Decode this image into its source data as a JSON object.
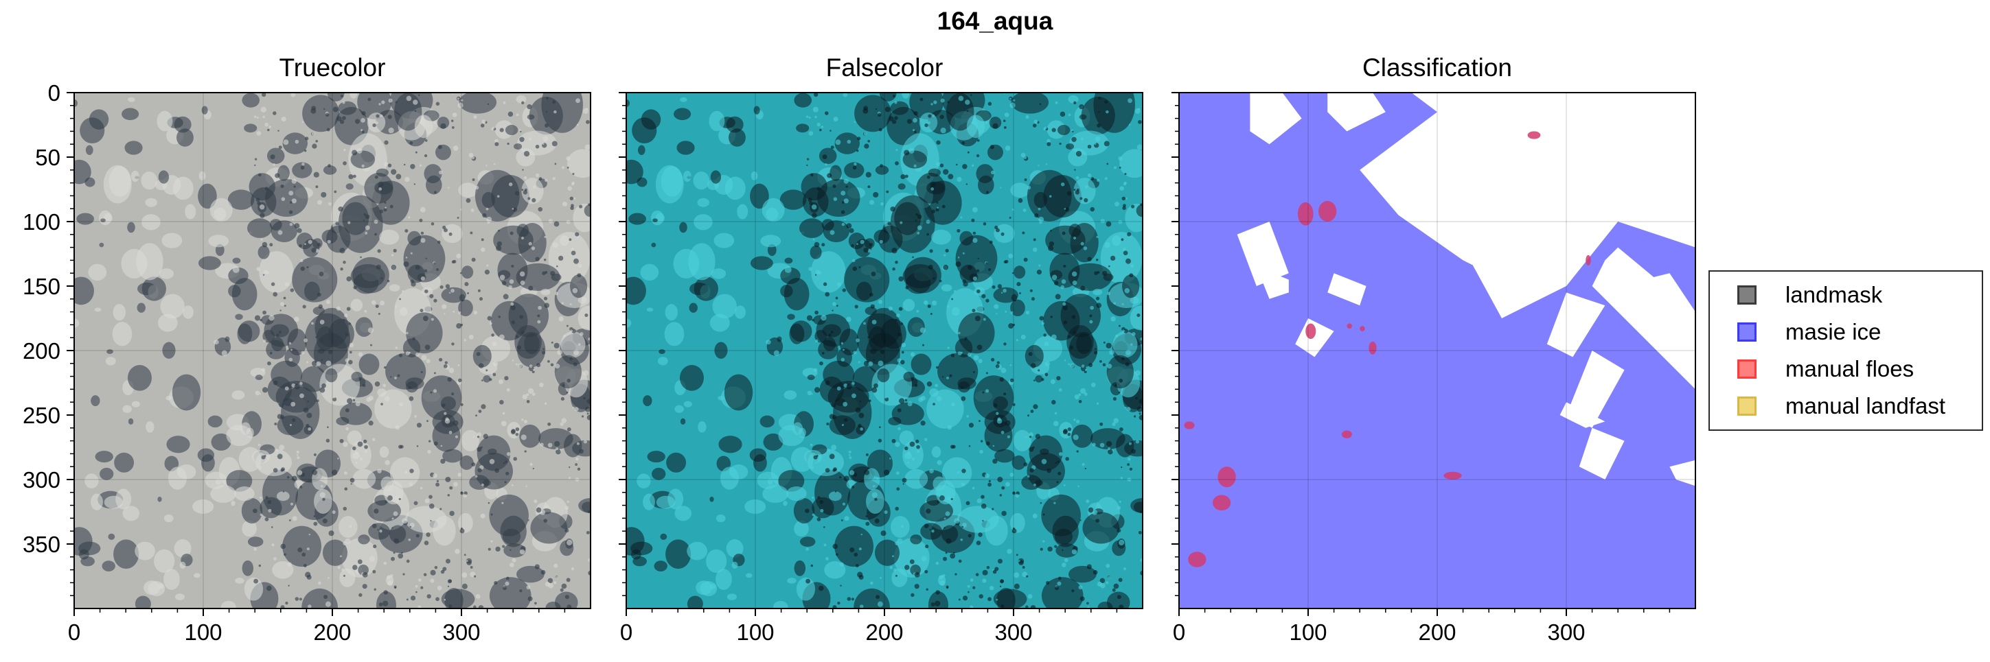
{
  "figure": {
    "suptitle": "164_aqua"
  },
  "chart_data": [
    {
      "type": "image",
      "title": "Truecolor",
      "xlim": [
        0,
        400
      ],
      "ylim": [
        400,
        0
      ],
      "x_ticks": [
        0,
        100,
        200,
        300
      ],
      "y_ticks": [
        0,
        50,
        100,
        150,
        200,
        250,
        300,
        350
      ],
      "y_tick_labels_visible": true,
      "grid": true,
      "colors": {
        "background": "#b8b9b5",
        "dark": "#2f3a45",
        "bright": "#d8d9d6"
      }
    },
    {
      "type": "image",
      "title": "Falsecolor",
      "xlim": [
        0,
        400
      ],
      "ylim": [
        400,
        0
      ],
      "x_ticks": [
        0,
        100,
        200,
        300
      ],
      "y_tick_labels_visible": false,
      "grid": true,
      "colors": {
        "background": "#2aa8b4",
        "dark": "#0b1b22",
        "bright": "#4fd0da"
      }
    },
    {
      "type": "image",
      "title": "Classification",
      "xlim": [
        0,
        400
      ],
      "ylim": [
        400,
        0
      ],
      "x_ticks": [
        0,
        100,
        200,
        300
      ],
      "y_tick_labels_visible": false,
      "grid": true,
      "colors": {
        "masie_ice": "#7f7fff",
        "manual_floes": "#d23b6e",
        "open": "#ffffff"
      },
      "regions": {
        "masie_white": [
          [
            [
              180,
              0
            ],
            [
              400,
              0
            ],
            [
              400,
              120
            ],
            [
              340,
              100
            ],
            [
              300,
              150
            ],
            [
              280,
              160
            ],
            [
              220,
              130
            ],
            [
              170,
              95
            ],
            [
              140,
              60
            ],
            [
              200,
              15
            ]
          ],
          [
            [
              55,
              0
            ],
            [
              80,
              0
            ],
            [
              95,
              20
            ],
            [
              70,
              40
            ],
            [
              55,
              30
            ]
          ],
          [
            [
              115,
              0
            ],
            [
              150,
              0
            ],
            [
              160,
              15
            ],
            [
              130,
              30
            ],
            [
              115,
              15
            ]
          ],
          [
            [
              210,
              30
            ],
            [
              250,
              30
            ],
            [
              265,
              45
            ],
            [
              240,
              60
            ],
            [
              215,
              45
            ]
          ],
          [
            [
              170,
              75
            ],
            [
              200,
              60
            ],
            [
              225,
              85
            ],
            [
              195,
              100
            ]
          ],
          [
            [
              220,
              120
            ],
            [
              245,
              105
            ],
            [
              280,
              160
            ],
            [
              250,
              175
            ]
          ],
          [
            [
              330,
              130
            ],
            [
              340,
              120
            ],
            [
              400,
              170
            ],
            [
              400,
              230
            ],
            [
              320,
              150
            ]
          ],
          [
            [
              360,
              145
            ],
            [
              380,
              140
            ],
            [
              400,
              170
            ],
            [
              390,
              180
            ]
          ],
          [
            [
              45,
              110
            ],
            [
              70,
              100
            ],
            [
              85,
              140
            ],
            [
              60,
              150
            ]
          ],
          [
            [
              60,
              135
            ],
            [
              85,
              145
            ],
            [
              85,
              155
            ],
            [
              70,
              160
            ]
          ],
          [
            [
              120,
              140
            ],
            [
              145,
              150
            ],
            [
              140,
              165
            ],
            [
              115,
              155
            ]
          ],
          [
            [
              100,
              175
            ],
            [
              120,
              185
            ],
            [
              105,
              205
            ],
            [
              90,
              195
            ]
          ],
          [
            [
              300,
              155
            ],
            [
              330,
              165
            ],
            [
              305,
              205
            ],
            [
              285,
              195
            ]
          ],
          [
            [
              320,
              260
            ],
            [
              345,
              270
            ],
            [
              330,
              300
            ],
            [
              310,
              290
            ]
          ],
          [
            [
              320,
              200
            ],
            [
              345,
              215
            ],
            [
              320,
              260
            ],
            [
              300,
              250
            ]
          ],
          [
            [
              380,
              290
            ],
            [
              400,
              285
            ],
            [
              400,
              305
            ],
            [
              385,
              300
            ]
          ],
          [
            [
              300,
              240
            ],
            [
              330,
              255
            ],
            [
              315,
              260
            ],
            [
              295,
              250
            ]
          ]
        ],
        "manual_floes": [
          {
            "x": 98,
            "y": 94,
            "rx": 6,
            "ry": 9
          },
          {
            "x": 115,
            "y": 92,
            "rx": 7,
            "ry": 8
          },
          {
            "x": 102,
            "y": 185,
            "rx": 4,
            "ry": 6
          },
          {
            "x": 150,
            "y": 198,
            "rx": 3,
            "ry": 5
          },
          {
            "x": 132,
            "y": 181,
            "rx": 2,
            "ry": 2
          },
          {
            "x": 142,
            "y": 183,
            "rx": 2,
            "ry": 2
          },
          {
            "x": 275,
            "y": 33,
            "rx": 5,
            "ry": 3
          },
          {
            "x": 317,
            "y": 130,
            "rx": 2,
            "ry": 4
          },
          {
            "x": 130,
            "y": 265,
            "rx": 4,
            "ry": 3
          },
          {
            "x": 8,
            "y": 258,
            "rx": 4,
            "ry": 3
          },
          {
            "x": 37,
            "y": 298,
            "rx": 7,
            "ry": 8
          },
          {
            "x": 33,
            "y": 318,
            "rx": 7,
            "ry": 6
          },
          {
            "x": 14,
            "y": 362,
            "rx": 7,
            "ry": 6
          },
          {
            "x": 212,
            "y": 297,
            "rx": 7,
            "ry": 3
          }
        ]
      }
    }
  ],
  "legend": {
    "items": [
      {
        "label": "landmask",
        "fill": "#808080",
        "edge": "#3a3a3a"
      },
      {
        "label": "masie ice",
        "fill": "#7f7fff",
        "edge": "#3a3aff"
      },
      {
        "label": "manual floes",
        "fill": "#ff7f7f",
        "edge": "#ff3a3a"
      },
      {
        "label": "manual landfast",
        "fill": "#f0d77a",
        "edge": "#d9b84a"
      }
    ]
  }
}
